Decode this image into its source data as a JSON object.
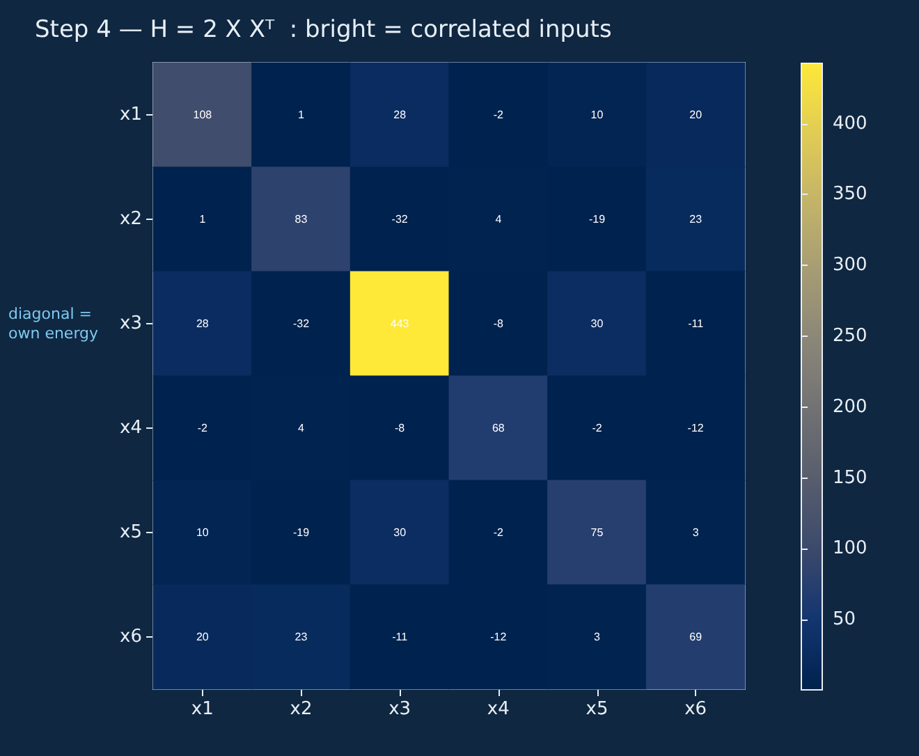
{
  "chart_data": {
    "type": "heatmap",
    "title": "Step 4 — H = 2 X Xᵀ  : bright = correlated inputs",
    "categories": [
      "x1",
      "x2",
      "x3",
      "x4",
      "x5",
      "x6"
    ],
    "y_categories": [
      "x1",
      "x2",
      "x3",
      "x4",
      "x5",
      "x6"
    ],
    "cells": [
      [
        108,
        1,
        28,
        -2,
        10,
        20
      ],
      [
        1,
        83,
        -32,
        4,
        -19,
        23
      ],
      [
        28,
        -32,
        443,
        -8,
        30,
        -11
      ],
      [
        -2,
        4,
        -8,
        68,
        -2,
        -12
      ],
      [
        10,
        -19,
        30,
        -2,
        75,
        3
      ],
      [
        20,
        23,
        -11,
        -12,
        3,
        69
      ]
    ],
    "clim": [
      1,
      443
    ],
    "cticks": [
      50,
      100,
      150,
      200,
      250,
      300,
      350,
      400
    ],
    "data_labels": true,
    "annotations": [
      "diagonal =\nown energy"
    ]
  }
}
